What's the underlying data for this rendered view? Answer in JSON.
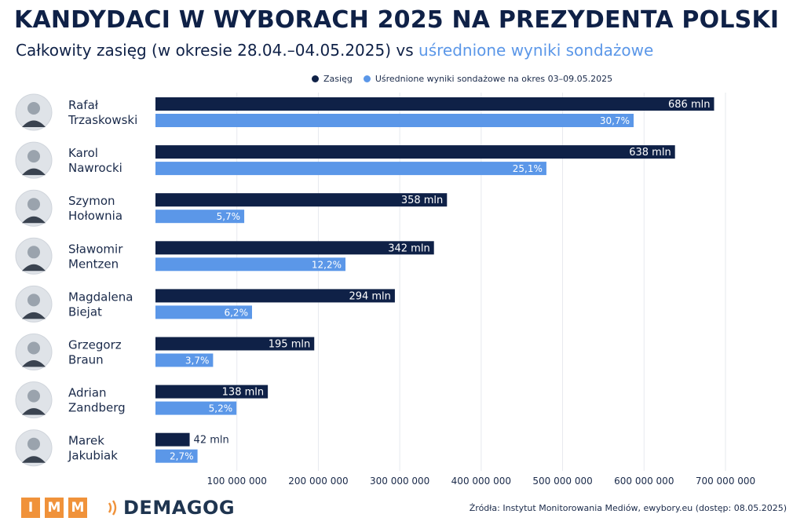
{
  "title": "KANDYDACI W WYBORACH 2025 NA PREZYDENTA POLSKI",
  "subtitle_main": "Całkowity zasięg (w okresie 28.04.–04.05.2025) vs ",
  "subtitle_highlight": "uśrednione wyniki sondażowe",
  "colors": {
    "reach": "#0f2147",
    "poll": "#5b97e8",
    "title": "#0f2147",
    "logo_orange": "#f0923a"
  },
  "chart_data": {
    "type": "bar",
    "orientation": "horizontal",
    "categories": [
      "Rafał Trzaskowski",
      "Karol Nawrocki",
      "Szymon Hołownia",
      "Sławomir Mentzen",
      "Magdalena Biejat",
      "Grzegorz Braun",
      "Adrian Zandberg",
      "Marek Jakubiak"
    ],
    "category_lines": [
      [
        "Rafał",
        "Trzaskowski"
      ],
      [
        "Karol",
        "Nawrocki"
      ],
      [
        "Szymon",
        "Hołownia"
      ],
      [
        "Sławomir",
        "Mentzen"
      ],
      [
        "Magdalena",
        "Biejat"
      ],
      [
        "Grzegorz",
        "Braun"
      ],
      [
        "Adrian",
        "Zandberg"
      ],
      [
        "Marek",
        "Jakubiak"
      ]
    ],
    "series": [
      {
        "name": "Zasięg",
        "values": [
          686000000,
          638000000,
          358000000,
          342000000,
          294000000,
          195000000,
          138000000,
          42000000
        ],
        "labels": [
          "686 mln",
          "638 mln",
          "358 mln",
          "342 mln",
          "294 mln",
          "195 mln",
          "138 mln",
          "42 mln"
        ]
      },
      {
        "name": "Uśrednione wyniki sondażowe na okres 03–09.05.2025",
        "values": [
          30.7,
          25.1,
          5.7,
          12.2,
          6.2,
          3.7,
          5.2,
          2.7
        ],
        "labels": [
          "30,7%",
          "25,1%",
          "5,7%",
          "12,2%",
          "6,2%",
          "3,7%",
          "5,2%",
          "2,7%"
        ]
      }
    ],
    "x_ticks": [
      100000000,
      200000000,
      300000000,
      400000000,
      500000000,
      600000000,
      700000000
    ],
    "x_tick_labels": [
      "100 000 000",
      "200 000 000",
      "300 000 000",
      "400 000 000",
      "500 000 000",
      "600 000 000",
      "700 000 000"
    ],
    "xlim": [
      0,
      730000000
    ],
    "grid": true,
    "legend_position": "top"
  },
  "footer": {
    "imm_letters": [
      "I",
      "M",
      "M"
    ],
    "demagog": "DEMAGOG",
    "source": "Źródła: Instytut Monitorowania Mediów, ewybory.eu (dostęp: 08.05.2025)"
  }
}
